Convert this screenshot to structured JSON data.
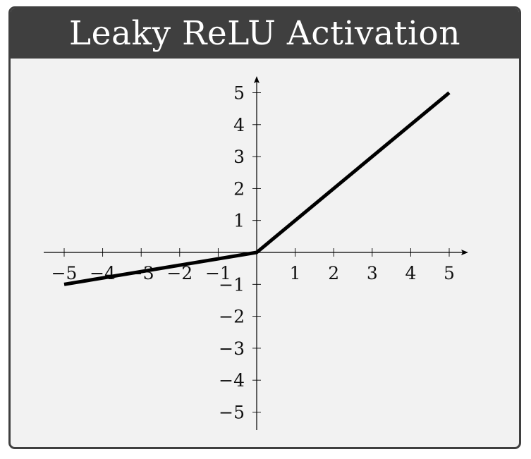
{
  "card": {
    "title": "Leaky ReLU Activation"
  },
  "chart_data": {
    "type": "line",
    "title": "Leaky ReLU Activation",
    "xlabel": "",
    "ylabel": "",
    "xlim": [
      -5.5,
      5.5
    ],
    "ylim": [
      -5.5,
      5.5
    ],
    "xticks": [
      -5,
      -4,
      -3,
      -2,
      -1,
      1,
      2,
      3,
      4,
      5
    ],
    "yticks": [
      -5,
      -4,
      -3,
      -2,
      -1,
      1,
      2,
      3,
      4,
      5
    ],
    "xtick_labels": [
      "−5",
      "−4",
      "−3",
      "−2",
      "−1",
      "1",
      "2",
      "3",
      "4",
      "5"
    ],
    "ytick_labels": [
      "−5",
      "−4",
      "−3",
      "−2",
      "−1",
      "1",
      "2",
      "3",
      "4",
      "5"
    ],
    "grid": false,
    "series": [
      {
        "x": [
          -5,
          0,
          5
        ],
        "y": [
          -1,
          0,
          5
        ],
        "color": "#000000"
      }
    ]
  }
}
